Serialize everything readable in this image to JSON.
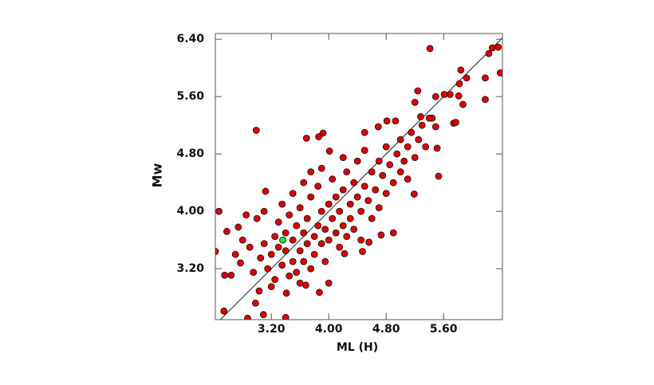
{
  "chart_data": {
    "type": "scatter",
    "xlabel": "ML (H)",
    "ylabel": "Mw",
    "xlim": [
      2.42,
      6.42
    ],
    "ylim": [
      2.49,
      6.48
    ],
    "xticks": [
      {
        "value": 3.2,
        "label": "3.20"
      },
      {
        "value": 4.0,
        "label": "4.00"
      },
      {
        "value": 4.8,
        "label": "4.80"
      },
      {
        "value": 5.6,
        "label": "5.60"
      }
    ],
    "yticks": [
      {
        "value": 3.2,
        "label": "3.20"
      },
      {
        "value": 4.0,
        "label": "4.00"
      },
      {
        "value": 4.8,
        "label": "4.80"
      },
      {
        "value": 5.6,
        "label": "5.60"
      },
      {
        "value": 6.4,
        "label": "6.40"
      }
    ],
    "reference_line": "y=x",
    "series": [
      {
        "color": "#dd0000",
        "x": [
          5.41,
          6.28,
          6.36,
          6.23,
          6.39,
          5.84,
          6.18,
          6.18,
          5.92,
          5.82,
          5.69,
          5.81,
          5.61,
          5.49,
          5.87,
          5.74,
          5.77,
          5.53,
          5.19,
          5.44,
          5.49,
          5.51,
          2.99,
          2.47,
          2.54,
          2.55,
          2.42,
          2.87,
          3.09,
          3.4,
          3.41,
          2.98,
          3.03,
          3.12,
          3.69,
          3.86,
          3.92,
          4.01,
          4.69,
          4.81,
          4.93,
          5.2,
          5.24,
          5.28,
          4.56,
          4.9,
          4.73,
          4.47,
          4.22,
          3.87,
          3.68,
          4.0,
          2.58,
          2.74,
          2.77,
          2.64,
          3.05,
          3.1,
          3.15,
          3.2,
          3.25,
          3.25,
          3.3,
          3.3,
          3.35,
          3.4,
          3.4,
          3.45,
          3.45,
          3.5,
          3.5,
          3.55,
          3.55,
          3.6,
          3.6,
          3.65,
          3.65,
          3.7,
          3.7,
          3.75,
          3.75,
          3.8,
          3.8,
          3.85,
          3.85,
          3.9,
          3.9,
          3.95,
          3.95,
          4.0,
          4.0,
          4.05,
          4.05,
          4.1,
          4.1,
          4.15,
          4.15,
          4.2,
          4.2,
          4.25,
          4.25,
          4.3,
          4.3,
          4.35,
          4.35,
          4.4,
          4.4,
          4.45,
          4.45,
          4.5,
          4.5,
          4.55,
          4.6,
          4.6,
          4.65,
          4.7,
          4.7,
          4.75,
          4.8,
          4.8,
          4.85,
          4.9,
          4.95,
          5.0,
          5.0,
          5.05,
          5.1,
          5.1,
          5.15,
          5.2,
          5.25,
          5.3,
          5.35,
          5.4,
          3.0,
          2.9,
          2.8,
          2.95,
          2.7,
          3.35,
          3.5,
          3.65,
          3.2,
          3.6,
          3.1,
          2.85,
          3.75,
          4.5,
          4.2,
          3.9
        ],
        "values": [
          6.27,
          6.28,
          6.29,
          6.2,
          5.93,
          5.97,
          5.86,
          5.56,
          5.86,
          5.78,
          5.63,
          5.61,
          5.63,
          5.6,
          5.49,
          5.23,
          5.24,
          4.49,
          4.24,
          5.3,
          5.18,
          4.88,
          5.13,
          4.0,
          2.61,
          3.11,
          3.44,
          2.51,
          2.56,
          2.52,
          2.86,
          2.72,
          2.89,
          4.28,
          5.02,
          5.04,
          5.09,
          4.84,
          5.18,
          5.26,
          5.26,
          5.52,
          5.68,
          5.32,
          3.57,
          3.7,
          3.67,
          3.44,
          3.41,
          2.87,
          2.97,
          3.0,
          3.72,
          3.78,
          3.28,
          3.11,
          3.35,
          3.55,
          3.2,
          3.4,
          3.65,
          3.05,
          3.5,
          3.85,
          3.25,
          3.45,
          3.7,
          3.1,
          3.95,
          3.3,
          3.6,
          3.8,
          3.15,
          3.45,
          4.05,
          3.7,
          3.3,
          3.55,
          3.9,
          3.2,
          4.2,
          3.65,
          3.4,
          3.8,
          4.35,
          3.55,
          4.0,
          3.3,
          3.75,
          4.1,
          3.6,
          3.9,
          4.45,
          3.7,
          4.2,
          3.5,
          4.0,
          4.3,
          3.8,
          4.55,
          3.65,
          4.1,
          3.9,
          4.4,
          3.75,
          4.2,
          4.7,
          4.0,
          3.6,
          4.35,
          4.85,
          4.15,
          4.55,
          3.9,
          4.3,
          4.7,
          4.05,
          4.5,
          4.9,
          4.25,
          4.65,
          4.4,
          4.8,
          4.55,
          5.0,
          4.7,
          4.9,
          4.45,
          5.1,
          4.75,
          5.0,
          5.2,
          4.9,
          5.3,
          3.9,
          3.5,
          3.6,
          3.15,
          3.4,
          4.1,
          4.25,
          4.4,
          2.95,
          3.0,
          4.0,
          3.95,
          4.55,
          5.1,
          4.75,
          4.6
        ]
      },
      {
        "color": "#33dd33",
        "x": [
          3.36
        ],
        "values": [
          3.6
        ]
      }
    ]
  }
}
